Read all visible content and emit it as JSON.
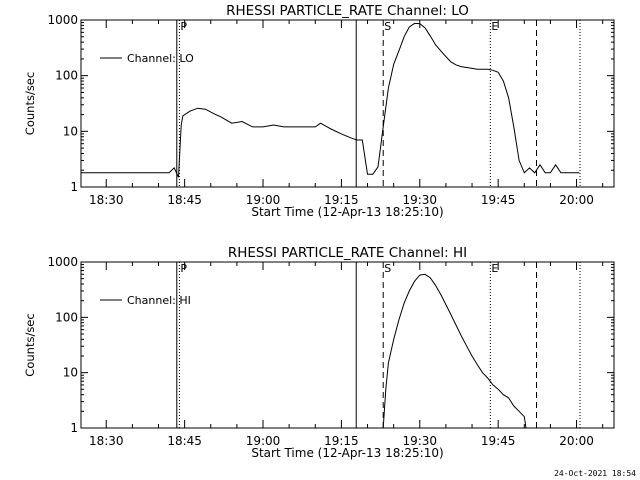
{
  "footer_timestamp": "24-Oct-2021 18:54",
  "chart_data": [
    {
      "type": "line",
      "title": "RHESSI PARTICLE_RATE Channel: LO",
      "xlabel": "Start Time (12-Apr-13 18:25:10)",
      "ylabel": "Counts/sec",
      "yscale": "log",
      "ylim": [
        1,
        1000
      ],
      "y_ticks": [
        "1",
        "10",
        "100",
        "1000"
      ],
      "x_unit": "minutes",
      "xlim": [
        "18:25:10",
        "20:07:10"
      ],
      "x_ticks": [
        "18:30",
        "18:45",
        "19:00",
        "19:15",
        "19:30",
        "19:45",
        "20:00"
      ],
      "legend": "Channel: LO",
      "legend_placement": "top-left",
      "grid": false,
      "markers": [
        {
          "label": "P",
          "time": "18:44:00",
          "style": "dotted"
        },
        {
          "label": "",
          "time": "18:43:30",
          "style": "solid"
        },
        {
          "label": "",
          "time": "19:17:50",
          "style": "solid"
        },
        {
          "label": "S",
          "time": "19:23:00",
          "style": "dashed"
        },
        {
          "label": "E",
          "time": "19:43:30",
          "style": "dotted"
        },
        {
          "label": "",
          "time": "19:52:20",
          "style": "dashed"
        },
        {
          "label": "",
          "time": "20:00:40",
          "style": "dotted"
        }
      ],
      "series": [
        {
          "name": "Channel: LO",
          "x": [
            "18:25:10",
            "18:38:00",
            "18:39:00",
            "18:40:00",
            "18:41:00",
            "18:42:00",
            "18:43:00",
            "18:43:50",
            "18:44:20",
            "18:44:40",
            "18:46:00",
            "18:47:30",
            "18:49:00",
            "18:50:30",
            "18:52:00",
            "18:54:00",
            "18:56:00",
            "18:58:00",
            "19:00:00",
            "19:02:00",
            "19:04:00",
            "19:06:00",
            "19:08:00",
            "19:10:00",
            "19:11:00",
            "19:13:00",
            "19:15:00",
            "19:17:00",
            "19:18:00",
            "19:19:00",
            "19:20:00",
            "19:21:00",
            "19:22:00",
            "19:23:00",
            "19:24:00",
            "19:25:00",
            "19:26:00",
            "19:27:00",
            "19:28:00",
            "19:29:00",
            "19:30:00",
            "19:31:00",
            "19:32:00",
            "19:33:00",
            "19:34:00",
            "19:35:00",
            "19:36:00",
            "19:37:00",
            "19:38:00",
            "19:39:00",
            "19:40:00",
            "19:41:00",
            "19:42:00",
            "19:43:00",
            "19:44:00",
            "19:45:00",
            "19:46:00",
            "19:47:00",
            "19:48:00",
            "19:49:00",
            "19:50:00",
            "19:51:00",
            "19:52:00",
            "19:53:00",
            "19:54:00",
            "19:55:00",
            "19:56:00",
            "19:57:00",
            "19:58:00",
            "19:59:00",
            "20:00:30"
          ],
          "y": [
            1.8,
            1.8,
            1.8,
            1.8,
            1.8,
            1.8,
            2.2,
            1.5,
            13,
            19,
            23,
            26,
            25,
            21,
            18,
            14,
            15,
            12,
            12,
            13,
            12,
            12,
            12,
            12,
            14,
            11,
            9,
            7.5,
            7,
            7,
            1.7,
            1.7,
            2.3,
            12,
            60,
            160,
            280,
            500,
            750,
            870,
            860,
            720,
            520,
            360,
            280,
            220,
            175,
            155,
            145,
            140,
            135,
            130,
            130,
            130,
            125,
            115,
            80,
            40,
            12,
            3,
            1.8,
            2.2,
            1.8,
            2.5,
            1.8,
            1.8,
            2.5,
            1.8,
            1.8,
            1.8,
            1.8
          ]
        }
      ]
    },
    {
      "type": "line",
      "title": "RHESSI PARTICLE_RATE Channel: HI",
      "xlabel": "Start Time (12-Apr-13 18:25:10)",
      "ylabel": "Counts/sec",
      "yscale": "log",
      "ylim": [
        1,
        1000
      ],
      "y_ticks": [
        "1",
        "10",
        "100",
        "1000"
      ],
      "x_unit": "minutes",
      "xlim": [
        "18:25:10",
        "20:07:10"
      ],
      "x_ticks": [
        "18:30",
        "18:45",
        "19:00",
        "19:15",
        "19:30",
        "19:45",
        "20:00"
      ],
      "legend": "Channel: HI",
      "legend_placement": "top-left",
      "grid": false,
      "markers": [
        {
          "label": "P",
          "time": "18:44:00",
          "style": "dotted"
        },
        {
          "label": "",
          "time": "18:43:30",
          "style": "solid"
        },
        {
          "label": "",
          "time": "19:17:50",
          "style": "solid"
        },
        {
          "label": "S",
          "time": "19:23:00",
          "style": "dashed"
        },
        {
          "label": "E",
          "time": "19:43:30",
          "style": "dotted"
        },
        {
          "label": "",
          "time": "19:52:20",
          "style": "dashed"
        },
        {
          "label": "",
          "time": "20:00:40",
          "style": "dotted"
        }
      ],
      "series": [
        {
          "name": "Channel: HI",
          "x": [
            "19:23:00",
            "19:23:30",
            "19:24:00",
            "19:25:00",
            "19:26:00",
            "19:27:00",
            "19:28:00",
            "19:29:00",
            "19:30:00",
            "19:31:00",
            "19:32:00",
            "19:33:00",
            "19:34:00",
            "19:35:00",
            "19:36:00",
            "19:37:00",
            "19:38:00",
            "19:39:00",
            "19:40:00",
            "19:41:00",
            "19:42:00",
            "19:43:00",
            "19:44:00",
            "19:45:00",
            "19:46:00",
            "19:47:00",
            "19:48:00",
            "19:49:00",
            "19:50:00",
            "19:50:20"
          ],
          "y": [
            1,
            5,
            15,
            40,
            90,
            180,
            300,
            450,
            580,
            600,
            520,
            380,
            260,
            170,
            110,
            70,
            45,
            30,
            20,
            14,
            10,
            8,
            6,
            5,
            4,
            3.5,
            2.5,
            2.0,
            1.6,
            1
          ]
        }
      ]
    }
  ]
}
